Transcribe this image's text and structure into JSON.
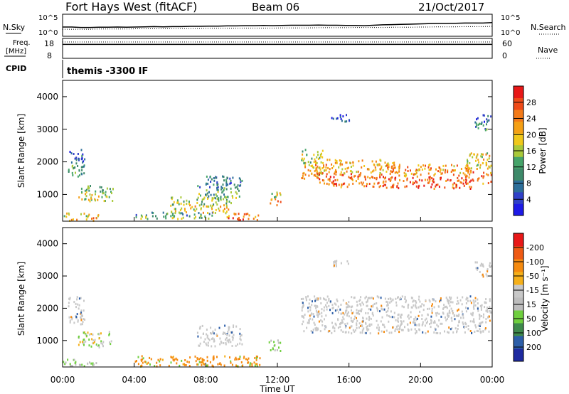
{
  "header": {
    "title": "Fort Hays West (fitACF)",
    "beam": "Beam 06",
    "date": "21/Oct/2017"
  },
  "strips": {
    "nsky": {
      "label": "N.Sky",
      "scale_hi": "10^5",
      "scale_lo": "10^0",
      "right_label": "N.Search",
      "right_hi": "10^5",
      "right_lo": "10^0",
      "values": [
        0.42,
        0.42,
        0.4,
        0.4,
        0.41,
        0.41,
        0.42,
        0.41,
        0.42,
        0.43,
        0.44,
        0.43,
        0.44,
        0.44,
        0.45,
        0.45,
        0.46,
        0.46,
        0.47,
        0.47,
        0.48,
        0.48,
        0.49,
        0.48,
        0.49,
        0.5,
        0.5,
        0.5,
        0.51,
        0.5,
        0.5,
        0.49,
        0.49,
        0.48,
        0.5,
        0.52,
        0.53,
        0.54,
        0.55,
        0.56,
        0.57,
        0.58,
        0.58,
        0.59,
        0.6,
        0.6,
        0.6,
        0.62
      ],
      "search_values": [
        0.32,
        0.32,
        0.32,
        0.32,
        0.33,
        0.33,
        0.33,
        0.33,
        0.34,
        0.34,
        0.34,
        0.34,
        0.35,
        0.35,
        0.35,
        0.35,
        0.36,
        0.36,
        0.36,
        0.36,
        0.37,
        0.37,
        0.37,
        0.37,
        0.38,
        0.38,
        0.38,
        0.38,
        0.39,
        0.39,
        0.39,
        0.39,
        0.4,
        0.4,
        0.4,
        0.4,
        0.41,
        0.41,
        0.41,
        0.42,
        0.42,
        0.43,
        0.43,
        0.43,
        0.44,
        0.44,
        0.44,
        0.45
      ]
    },
    "freq": {
      "label": "Freq.",
      "unit": "[MHz]",
      "hi": "18",
      "lo": "8",
      "right_label": "Nave",
      "right_hi": "60",
      "right_lo": "0",
      "values": [
        0.7,
        0.7,
        0.7,
        0.7,
        0.7,
        0.7,
        0.7,
        0.7,
        0.7,
        0.7,
        0.7,
        0.7,
        0.7,
        0.7,
        0.7,
        0.7,
        0.7,
        0.7,
        0.7,
        0.7,
        0.7,
        0.7,
        0.7,
        0.7,
        0.7,
        0.7,
        0.7,
        0.7,
        0.7,
        0.7,
        0.7,
        0.7,
        0.7,
        0.7,
        0.7,
        0.7,
        0.7,
        0.7,
        0.7,
        0.7,
        0.7,
        0.7,
        0.7,
        0.7,
        0.7,
        0.7,
        0.7,
        0.7
      ],
      "nave_values": [
        0.82,
        0.82,
        0.82,
        0.82,
        0.82,
        0.82,
        0.82,
        0.82,
        0.82,
        0.82,
        0.82,
        0.82,
        0.82,
        0.82,
        0.82,
        0.82,
        0.82,
        0.82,
        0.82,
        0.82,
        0.82,
        0.82,
        0.82,
        0.82,
        0.82,
        0.82,
        0.82,
        0.82,
        0.82,
        0.82,
        0.82,
        0.82,
        0.82,
        0.82,
        0.82,
        0.82,
        0.82,
        0.82,
        0.82,
        0.82,
        0.82,
        0.82,
        0.82,
        0.82,
        0.82,
        0.82,
        0.82,
        0.82
      ]
    },
    "cpid": {
      "label": "CPID",
      "text": "themis -3300 IF"
    }
  },
  "chart_data": [
    {
      "type": "heatmap",
      "name": "power",
      "ylabel": "Slant Range [km]",
      "yticks": [
        "1000",
        "2000",
        "3000",
        "4000"
      ],
      "ylim": [
        180,
        4500
      ],
      "xlim": [
        0,
        24
      ],
      "colorbar": {
        "label": "Power [dB]",
        "ticks": [
          "4",
          "8",
          "12",
          "16",
          "20",
          "24",
          "28"
        ],
        "colors": [
          "#1d1ae6",
          "#2f40c8",
          "#2c6e9a",
          "#3e8a6a",
          "#46a46a",
          "#a9c93a",
          "#f0c81a",
          "#f5a015",
          "#f37a17",
          "#ef4a18",
          "#e81818"
        ]
      },
      "regions": [
        {
          "t0": 0.3,
          "t1": 1.2,
          "r0": 1500,
          "r1": 2400,
          "level": 0.35
        },
        {
          "t0": 0.8,
          "t1": 2.8,
          "r0": 820,
          "r1": 1300,
          "level": 0.55
        },
        {
          "t0": 0.0,
          "t1": 2.0,
          "r0": 200,
          "r1": 450,
          "level": 0.7
        },
        {
          "t0": 4.0,
          "t1": 8.5,
          "r0": 280,
          "r1": 480,
          "level": 0.45
        },
        {
          "t0": 6.0,
          "t1": 9.5,
          "r0": 450,
          "r1": 950,
          "level": 0.6
        },
        {
          "t0": 7.5,
          "t1": 10.0,
          "r0": 900,
          "r1": 1600,
          "level": 0.4
        },
        {
          "t0": 9.0,
          "t1": 11.0,
          "r0": 200,
          "r1": 450,
          "level": 0.9
        },
        {
          "t0": 11.5,
          "t1": 12.2,
          "r0": 700,
          "r1": 1100,
          "level": 0.75
        },
        {
          "t0": 13.3,
          "t1": 14.5,
          "r0": 1500,
          "r1": 2400,
          "level": 0.65
        },
        {
          "t0": 14.0,
          "t1": 18.5,
          "r0": 1250,
          "r1": 2100,
          "level": 0.8
        },
        {
          "t0": 18.0,
          "t1": 22.8,
          "r0": 1200,
          "r1": 1950,
          "level": 0.85
        },
        {
          "t0": 22.5,
          "t1": 24.0,
          "r0": 1350,
          "r1": 2300,
          "level": 0.75
        },
        {
          "t0": 15.0,
          "t1": 16.0,
          "r0": 3250,
          "r1": 3500,
          "level": 0.2
        },
        {
          "t0": 23.0,
          "t1": 24.0,
          "r0": 3000,
          "r1": 3500,
          "level": 0.3
        }
      ]
    },
    {
      "type": "heatmap",
      "name": "velocity",
      "ylabel": "Slant Range [km]",
      "yticks": [
        "1000",
        "2000",
        "3000",
        "4000"
      ],
      "ylim": [
        180,
        4500
      ],
      "xlim": [
        0,
        24
      ],
      "colorbar": {
        "label": "Velocity [m s⁻¹]",
        "ticks": [
          "200",
          "100",
          "50",
          "15",
          "-15",
          "-50",
          "-100",
          "-200"
        ],
        "colors": [
          "#1e2aa0",
          "#2c5ea8",
          "#3e8a4c",
          "#6fcf3e",
          "#bdbdbd",
          "#c8c8c8",
          "#f5b01a",
          "#f58a0f",
          "#ef5a14",
          "#e81818"
        ]
      },
      "regions": [
        {
          "t0": 0.3,
          "t1": 1.2,
          "r0": 1500,
          "r1": 2400,
          "kind": "gray"
        },
        {
          "t0": 0.8,
          "t1": 2.8,
          "r0": 820,
          "r1": 1300,
          "kind": "mix"
        },
        {
          "t0": 0.0,
          "t1": 2.0,
          "r0": 200,
          "r1": 450,
          "kind": "green"
        },
        {
          "t0": 4.0,
          "t1": 11.0,
          "r0": 200,
          "r1": 550,
          "kind": "orange"
        },
        {
          "t0": 7.5,
          "t1": 10.0,
          "r0": 850,
          "r1": 1500,
          "kind": "gray"
        },
        {
          "t0": 11.5,
          "t1": 12.2,
          "r0": 700,
          "r1": 1100,
          "kind": "green"
        },
        {
          "t0": 13.3,
          "t1": 24.0,
          "r0": 1250,
          "r1": 2400,
          "kind": "gray"
        },
        {
          "t0": 15.0,
          "t1": 16.0,
          "r0": 3250,
          "r1": 3500,
          "kind": "gray"
        },
        {
          "t0": 23.0,
          "t1": 24.0,
          "r0": 3000,
          "r1": 3500,
          "kind": "gray"
        }
      ]
    }
  ],
  "time_axis": {
    "label": "Time UT",
    "ticks": [
      "00:00",
      "04:00",
      "08:00",
      "12:00",
      "16:00",
      "20:00",
      "00:00"
    ]
  }
}
